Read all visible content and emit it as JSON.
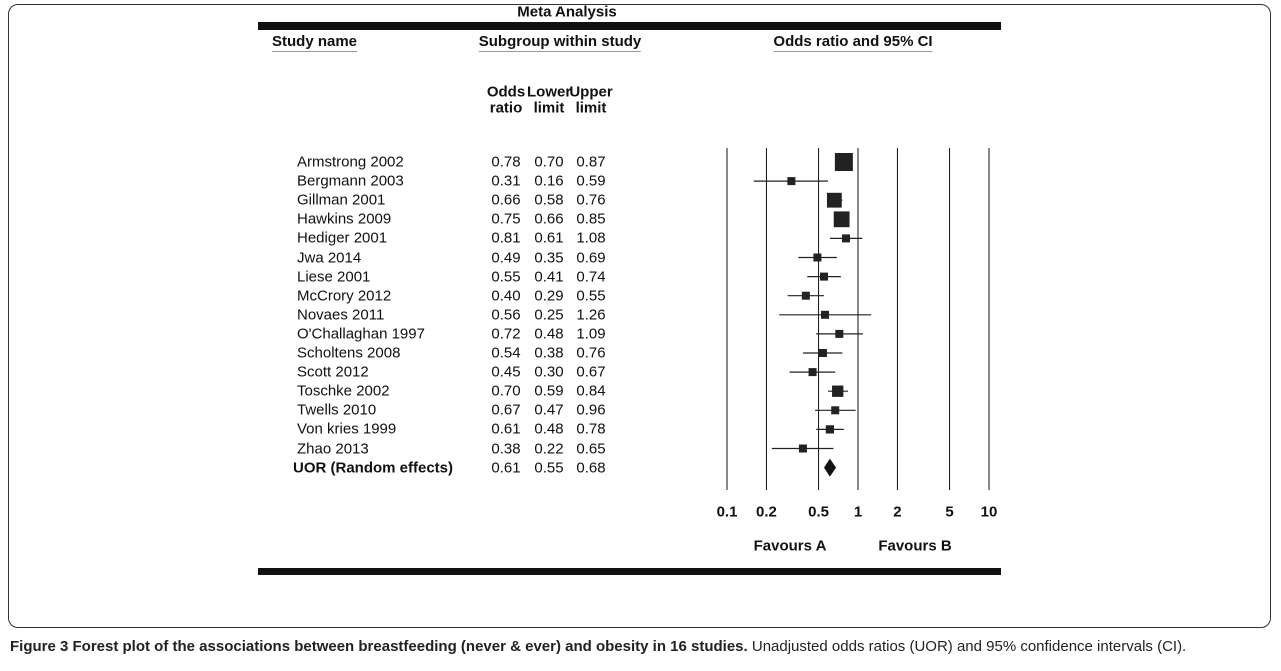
{
  "chart_data": {
    "type": "forest",
    "title": "Meta Analysis",
    "headers": {
      "study": "Study name",
      "subgroup": "Subgroup within study",
      "plot": "Odds ratio and 95% CI"
    },
    "categories": [
      "Armstrong 2002",
      "Bergmann 2003",
      "Gillman 2001",
      "Hawkins 2009",
      "Hediger 2001",
      "Jwa 2014",
      "Liese 2001",
      "McCrory 2012",
      "Novaes 2011",
      "O'Challaghan 1997",
      "Scholtens 2008",
      "Scott 2012",
      "Toschke 2002",
      "Twells 2010",
      "Von kries 1999",
      "Zhao 2013"
    ],
    "series": [
      {
        "name": "Odds ratio",
        "values": [
          0.78,
          0.31,
          0.66,
          0.75,
          0.81,
          0.49,
          0.55,
          0.4,
          0.56,
          0.72,
          0.54,
          0.45,
          0.7,
          0.67,
          0.61,
          0.38
        ],
        "value_labels": [
          "0.78",
          "0.31",
          "0.66",
          "0.75",
          "0.81",
          "0.49",
          "0.55",
          "0.40",
          "0.56",
          "0.72",
          "0.54",
          "0.45",
          "0.70",
          "0.67",
          "0.61",
          "0.38"
        ]
      },
      {
        "name": "Lower limit",
        "values": [
          0.7,
          0.16,
          0.58,
          0.66,
          0.61,
          0.35,
          0.41,
          0.29,
          0.25,
          0.48,
          0.38,
          0.3,
          0.59,
          0.47,
          0.48,
          0.22
        ],
        "value_labels": [
          "0.70",
          "0.16",
          "0.58",
          "0.66",
          "0.61",
          "0.35",
          "0.41",
          "0.29",
          "0.25",
          "0.48",
          "0.38",
          "0.30",
          "0.59",
          "0.47",
          "0.48",
          "0.22"
        ]
      },
      {
        "name": "Upper limit",
        "values": [
          0.87,
          0.59,
          0.76,
          0.85,
          1.08,
          0.69,
          0.74,
          0.55,
          1.26,
          1.09,
          0.76,
          0.67,
          0.84,
          0.96,
          0.78,
          0.65
        ],
        "value_labels": [
          "0.87",
          "0.59",
          "0.76",
          "0.85",
          "1.08",
          "0.69",
          "0.74",
          "0.55",
          "1.26",
          "1.09",
          "0.76",
          "0.67",
          "0.84",
          "0.96",
          "0.78",
          "0.65"
        ]
      }
    ],
    "summary": {
      "name": "UOR (Random effects)",
      "values": [
        0.61,
        0.55,
        0.68
      ],
      "value_labels": [
        "0.61",
        "0.55",
        "0.68"
      ]
    },
    "xscale": "log",
    "xlim": [
      0.1,
      10
    ],
    "xticks": [
      0.1,
      0.2,
      0.5,
      1,
      2,
      5,
      10
    ],
    "x_annotations": [
      "Favours A",
      "Favours B"
    ],
    "color": "#222222"
  },
  "caption": {
    "label": "Figure 3 Forest plot of the associations between breastfeeding (never & ever) and obesity in 16 studies.",
    "text": "Unadjusted odds ratios (UOR) and 95% confidence intervals (CI)."
  }
}
